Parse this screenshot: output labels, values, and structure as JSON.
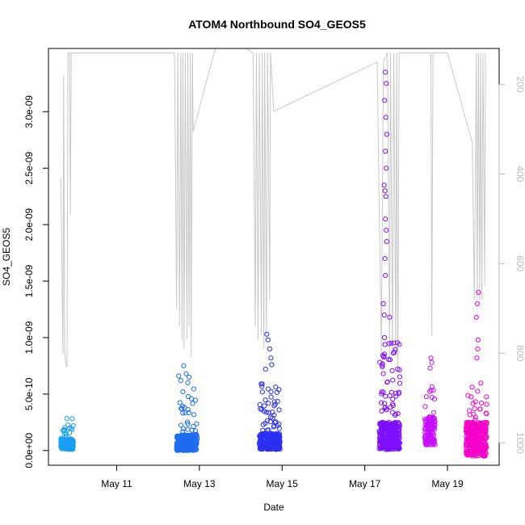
{
  "chart_data": {
    "type": "scatter",
    "title": "ATOM4 Northbound SO4_GEOS5",
    "xlabel": "Date",
    "ylabel": "SO4_GEOS5",
    "x_ticks": [
      {
        "day": 11,
        "label": "May 11"
      },
      {
        "day": 13,
        "label": "May 13"
      },
      {
        "day": 15,
        "label": "May 15"
      },
      {
        "day": 17,
        "label": "May 17"
      },
      {
        "day": 19,
        "label": "May 19"
      }
    ],
    "xlim": [
      9.35,
      20.25
    ],
    "y_ticks": [
      {
        "value": 0,
        "label": "0.0e+00"
      },
      {
        "value": 5e-10,
        "label": "5.0e-10"
      },
      {
        "value": 1e-09,
        "label": "1.0e-09"
      },
      {
        "value": 1.5e-09,
        "label": "1.5e-09"
      },
      {
        "value": 2e-09,
        "label": "2.0e-09"
      },
      {
        "value": 2.5e-09,
        "label": "2.5e-09"
      },
      {
        "value": 3e-09,
        "label": "3.0e-09"
      }
    ],
    "ylim": [
      -1.3e-10,
      3.56e-09
    ],
    "y2_ticks": [
      {
        "value": 200,
        "label": "200"
      },
      {
        "value": 400,
        "label": "400"
      },
      {
        "value": 600,
        "label": "600"
      },
      {
        "value": 800,
        "label": "800"
      },
      {
        "value": 1000,
        "label": "1000"
      }
    ],
    "y2lim": [
      1050,
      120
    ],
    "y2_color": "#bdbdbd",
    "pressure_color": "#c8c8c8",
    "marker": "open-circle",
    "series": [
      {
        "color": "#1a9ff5",
        "x_range": [
          9.65,
          9.95
        ],
        "y_base": [
          1e-11,
          1e-10
        ],
        "y_peak": 3e-10,
        "n": 220,
        "spikes": []
      },
      {
        "color": "#1f6cf0",
        "x_range": [
          12.45,
          12.95
        ],
        "y_base": [
          0,
          1.4e-10
        ],
        "y_peak": 5.5e-10,
        "n": 300,
        "spikes": [
          {
            "x": 12.5,
            "y": 6.6e-10
          },
          {
            "x": 12.55,
            "y": 6.2e-10
          },
          {
            "x": 12.6,
            "y": 5.2e-10
          },
          {
            "x": 12.62,
            "y": 7.5e-10
          },
          {
            "x": 12.68,
            "y": 6.8e-10
          },
          {
            "x": 12.72,
            "y": 6e-10
          },
          {
            "x": 12.75,
            "y": 6.5e-10
          }
        ]
      },
      {
        "color": "#2a2ff0",
        "x_range": [
          14.45,
          14.95
        ],
        "y_base": [
          1e-11,
          1.5e-10
        ],
        "y_peak": 6e-10,
        "n": 320,
        "spikes": [
          {
            "x": 14.6,
            "y": 7.2e-10
          },
          {
            "x": 14.63,
            "y": 1.03e-09
          },
          {
            "x": 14.66,
            "y": 9.8e-10
          },
          {
            "x": 14.7,
            "y": 9e-10
          },
          {
            "x": 14.73,
            "y": 8.2e-10
          },
          {
            "x": 14.75,
            "y": 7.6e-10
          }
        ]
      },
      {
        "color": "#7f0fff",
        "x_range": [
          17.35,
          17.85
        ],
        "y_base": [
          1e-11,
          2.5e-10
        ],
        "y_peak": 1e-09,
        "n": 380,
        "spikes": [
          {
            "x": 17.5,
            "y": 3.35e-09
          },
          {
            "x": 17.52,
            "y": 3.25e-09
          },
          {
            "x": 17.48,
            "y": 3.1e-09
          },
          {
            "x": 17.51,
            "y": 2.95e-09
          },
          {
            "x": 17.53,
            "y": 2.8e-09
          },
          {
            "x": 17.5,
            "y": 2.65e-09
          },
          {
            "x": 17.52,
            "y": 2.5e-09
          },
          {
            "x": 17.47,
            "y": 2.35e-09
          },
          {
            "x": 17.49,
            "y": 2.3e-09
          },
          {
            "x": 17.51,
            "y": 2.25e-09
          },
          {
            "x": 17.5,
            "y": 2.05e-09
          },
          {
            "x": 17.52,
            "y": 1.95e-09
          },
          {
            "x": 17.53,
            "y": 1.85e-09
          },
          {
            "x": 17.49,
            "y": 1.7e-09
          },
          {
            "x": 17.5,
            "y": 1.55e-09
          },
          {
            "x": 17.45,
            "y": 1.3e-09
          },
          {
            "x": 17.47,
            "y": 1.2e-09
          },
          {
            "x": 17.6,
            "y": 1.18e-09
          }
        ]
      },
      {
        "color": "#c80fff",
        "x_range": [
          18.45,
          18.7
        ],
        "y_base": [
          5e-11,
          3e-10
        ],
        "y_peak": 6e-10,
        "n": 140,
        "spikes": [
          {
            "x": 18.6,
            "y": 8.2e-10
          },
          {
            "x": 18.62,
            "y": 7.8e-10
          },
          {
            "x": 18.58,
            "y": 7.3e-10
          }
        ]
      },
      {
        "color": "#f500c8",
        "x_range": [
          19.45,
          19.95
        ],
        "y_base": [
          -5e-11,
          2.5e-10
        ],
        "y_peak": 6e-10,
        "n": 360,
        "spikes": [
          {
            "x": 19.75,
            "y": 1.4e-09
          },
          {
            "x": 19.72,
            "y": 1.3e-09
          },
          {
            "x": 19.7,
            "y": 1.18e-09
          },
          {
            "x": 19.74,
            "y": 9.8e-10
          },
          {
            "x": 19.73,
            "y": 9e-10
          },
          {
            "x": 19.71,
            "y": 8.2e-10
          }
        ]
      }
    ],
    "pressure_line": [
      [
        9.65,
        410
      ],
      [
        9.7,
        800
      ],
      [
        9.72,
        180
      ],
      [
        9.74,
        800
      ],
      [
        9.78,
        830
      ],
      [
        9.8,
        830
      ],
      [
        9.82,
        130
      ],
      [
        9.86,
        130
      ],
      [
        9.88,
        490
      ],
      [
        9.9,
        130
      ],
      [
        12.4,
        130
      ],
      [
        12.45,
        700
      ],
      [
        12.48,
        130
      ],
      [
        12.52,
        740
      ],
      [
        12.55,
        130
      ],
      [
        12.58,
        770
      ],
      [
        12.6,
        130
      ],
      [
        12.63,
        790
      ],
      [
        12.66,
        130
      ],
      [
        12.7,
        770
      ],
      [
        12.72,
        130
      ],
      [
        12.75,
        740
      ],
      [
        12.78,
        130
      ],
      [
        12.8,
        810
      ],
      [
        12.83,
        130
      ],
      [
        12.85,
        305
      ],
      [
        13.5,
        80
      ],
      [
        14.3,
        130
      ],
      [
        14.35,
        740
      ],
      [
        14.38,
        130
      ],
      [
        14.42,
        770
      ],
      [
        14.45,
        130
      ],
      [
        14.5,
        760
      ],
      [
        14.52,
        130
      ],
      [
        14.56,
        790
      ],
      [
        14.58,
        130
      ],
      [
        14.62,
        760
      ],
      [
        14.65,
        130
      ],
      [
        14.7,
        680
      ],
      [
        14.72,
        130
      ],
      [
        14.8,
        260
      ],
      [
        17.3,
        150
      ],
      [
        17.4,
        800
      ],
      [
        17.45,
        150
      ],
      [
        17.55,
        130
      ],
      [
        17.6,
        820
      ],
      [
        17.62,
        130
      ],
      [
        17.67,
        800
      ],
      [
        17.7,
        130
      ],
      [
        17.75,
        810
      ],
      [
        17.77,
        130
      ],
      [
        17.8,
        830
      ],
      [
        17.83,
        130
      ],
      [
        18.0,
        130
      ],
      [
        18.6,
        130
      ],
      [
        18.62,
        760
      ],
      [
        18.65,
        130
      ],
      [
        19.0,
        130
      ],
      [
        19.6,
        330
      ],
      [
        19.65,
        680
      ],
      [
        19.7,
        130
      ],
      [
        19.72,
        680
      ],
      [
        19.75,
        130
      ],
      [
        19.78,
        680
      ],
      [
        19.8,
        130
      ],
      [
        19.83,
        680
      ],
      [
        19.86,
        130
      ],
      [
        19.9,
        650
      ],
      [
        19.92,
        130
      ]
    ]
  }
}
